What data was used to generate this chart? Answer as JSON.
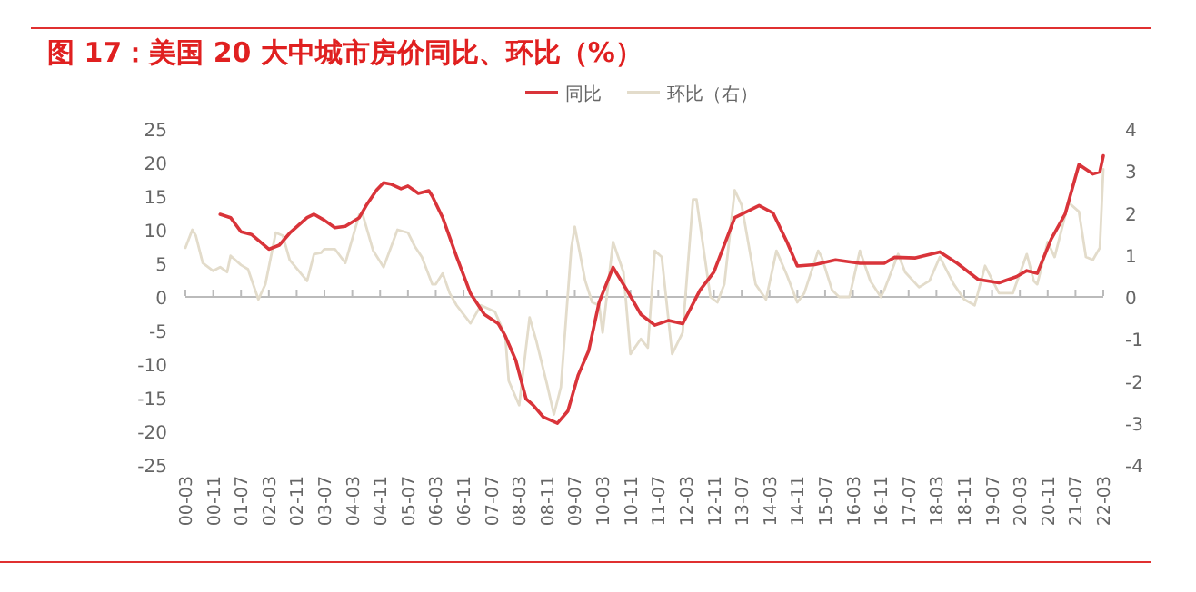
{
  "chart_data": {
    "type": "line",
    "title": "图 17：美国 20 大中城市房价同比、环比（%）",
    "legend": "top",
    "xlim": [
      "2000-03",
      "2022-03"
    ],
    "xticks": [
      {
        "value": "2000-03",
        "label": "00-03"
      },
      {
        "value": "2000-11",
        "label": "00-11"
      },
      {
        "value": "2001-07",
        "label": "01-07"
      },
      {
        "value": "2002-03",
        "label": "02-03"
      },
      {
        "value": "2002-11",
        "label": "02-11"
      },
      {
        "value": "2003-07",
        "label": "03-07"
      },
      {
        "value": "2004-03",
        "label": "04-03"
      },
      {
        "value": "2004-11",
        "label": "04-11"
      },
      {
        "value": "2005-07",
        "label": "05-07"
      },
      {
        "value": "2006-03",
        "label": "06-03"
      },
      {
        "value": "2006-11",
        "label": "06-11"
      },
      {
        "value": "2007-07",
        "label": "07-07"
      },
      {
        "value": "2008-03",
        "label": "08-03"
      },
      {
        "value": "2008-11",
        "label": "08-11"
      },
      {
        "value": "2009-07",
        "label": "09-07"
      },
      {
        "value": "2010-03",
        "label": "10-03"
      },
      {
        "value": "2010-11",
        "label": "10-11"
      },
      {
        "value": "2011-07",
        "label": "11-07"
      },
      {
        "value": "2012-03",
        "label": "12-03"
      },
      {
        "value": "2012-11",
        "label": "12-11"
      },
      {
        "value": "2013-07",
        "label": "13-07"
      },
      {
        "value": "2014-03",
        "label": "14-03"
      },
      {
        "value": "2014-11",
        "label": "14-11"
      },
      {
        "value": "2015-07",
        "label": "15-07"
      },
      {
        "value": "2016-03",
        "label": "16-03"
      },
      {
        "value": "2016-11",
        "label": "16-11"
      },
      {
        "value": "2017-07",
        "label": "17-07"
      },
      {
        "value": "2018-03",
        "label": "18-03"
      },
      {
        "value": "2018-11",
        "label": "18-11"
      },
      {
        "value": "2019-07",
        "label": "19-07"
      },
      {
        "value": "2020-03",
        "label": "20-03"
      },
      {
        "value": "2020-11",
        "label": "20-11"
      },
      {
        "value": "2021-07",
        "label": "21-07"
      },
      {
        "value": "2022-03",
        "label": "22-03"
      }
    ],
    "ylim": [
      -25,
      25
    ],
    "yticks": [
      -25,
      -20,
      -15,
      -10,
      -5,
      0,
      5,
      10,
      15,
      20,
      25
    ],
    "y2lim": [
      -4,
      4
    ],
    "y2ticks": [
      -4,
      -3,
      -2,
      -1,
      0,
      1,
      2,
      3,
      4
    ],
    "series": [
      {
        "name": "同比",
        "color": "#d9343a",
        "x": [
          "2001-01",
          "2001-04",
          "2001-07",
          "2001-10",
          "2002-03",
          "2002-06",
          "2002-09",
          "2003-02",
          "2003-04",
          "2003-07",
          "2003-10",
          "2004-01",
          "2004-05",
          "2004-07",
          "2004-10",
          "2004-12",
          "2005-02",
          "2005-05",
          "2005-07",
          "2005-10",
          "2006-01",
          "2006-02",
          "2006-05",
          "2006-09",
          "2007-01",
          "2007-05",
          "2007-09",
          "2007-11",
          "2008-02",
          "2008-05",
          "2008-07",
          "2008-10",
          "2009-02",
          "2009-05",
          "2009-08",
          "2009-11",
          "2010-02",
          "2010-06",
          "2010-10",
          "2011-02",
          "2011-06",
          "2011-10",
          "2012-02",
          "2012-07",
          "2012-11",
          "2013-05",
          "2013-07",
          "2013-12",
          "2014-04",
          "2014-08",
          "2014-11",
          "2015-04",
          "2015-10",
          "2016-05",
          "2016-12",
          "2017-03",
          "2017-09",
          "2018-04",
          "2018-09",
          "2019-03",
          "2019-09",
          "2020-02",
          "2020-05",
          "2020-08",
          "2020-12",
          "2021-04",
          "2021-08",
          "2021-12",
          "2022-02",
          "2022-03"
        ],
        "values": [
          12.3,
          11.8,
          9.7,
          9.3,
          7.1,
          7.7,
          9.5,
          11.8,
          12.3,
          11.4,
          10.3,
          10.5,
          11.8,
          13.6,
          15.9,
          17.0,
          16.8,
          16.1,
          16.5,
          15.4,
          15.8,
          15.0,
          11.8,
          6.0,
          0.5,
          -2.6,
          -4.0,
          -5.8,
          -9.4,
          -15.2,
          -16.1,
          -17.9,
          -18.8,
          -17.0,
          -11.6,
          -8.0,
          -0.8,
          4.4,
          1.0,
          -2.6,
          -4.2,
          -3.5,
          -4.0,
          1.0,
          3.7,
          11.8,
          12.3,
          13.6,
          12.5,
          8.2,
          4.6,
          4.8,
          5.5,
          5.0,
          5.0,
          5.9,
          5.8,
          6.7,
          5.0,
          2.6,
          2.1,
          3.0,
          3.9,
          3.5,
          8.6,
          12.3,
          19.7,
          18.3,
          18.6,
          21.0
        ]
      },
      {
        "name": "环比（右）",
        "color": "#e3dccb",
        "axis": "y2",
        "x": [
          "2000-03",
          "2000-05",
          "2000-06",
          "2000-08",
          "2000-11",
          "2001-01",
          "2001-03",
          "2001-04",
          "2001-07",
          "2001-09",
          "2001-12",
          "2002-02",
          "2002-05",
          "2002-07",
          "2002-09",
          "2003-02",
          "2003-04",
          "2003-06",
          "2003-07",
          "2003-10",
          "2004-01",
          "2004-05",
          "2004-06",
          "2004-09",
          "2004-12",
          "2005-04",
          "2005-07",
          "2005-09",
          "2005-11",
          "2006-02",
          "2006-03",
          "2006-05",
          "2006-07",
          "2006-09",
          "2007-01",
          "2007-04",
          "2007-08",
          "2007-11",
          "2007-12",
          "2008-03",
          "2008-06",
          "2008-08",
          "2008-11",
          "2009-01",
          "2009-03",
          "2009-06",
          "2009-07",
          "2009-10",
          "2009-12",
          "2010-02",
          "2010-03",
          "2010-06",
          "2010-09",
          "2010-11",
          "2011-02",
          "2011-04",
          "2011-06",
          "2011-08",
          "2011-11",
          "2012-02",
          "2012-05",
          "2012-06",
          "2012-10",
          "2012-12",
          "2013-02",
          "2013-05",
          "2013-07",
          "2013-11",
          "2014-02",
          "2014-05",
          "2014-08",
          "2014-11",
          "2015-01",
          "2015-05",
          "2015-06",
          "2015-09",
          "2015-11",
          "2016-02",
          "2016-05",
          "2016-08",
          "2016-11",
          "2016-12",
          "2017-04",
          "2017-06",
          "2017-10",
          "2018-01",
          "2018-04",
          "2018-08",
          "2018-11",
          "2019-02",
          "2019-05",
          "2019-09",
          "2020-01",
          "2020-05",
          "2020-07",
          "2020-08",
          "2020-11",
          "2021-01",
          "2021-05",
          "2021-08",
          "2021-10",
          "2021-12",
          "2022-02",
          "2022-03"
        ],
        "values": [
          1.17,
          1.6,
          1.46,
          0.81,
          0.62,
          0.71,
          0.59,
          0.98,
          0.76,
          0.66,
          -0.06,
          0.3,
          1.53,
          1.46,
          0.88,
          0.38,
          1.02,
          1.05,
          1.14,
          1.14,
          0.81,
          1.96,
          1.96,
          1.1,
          0.71,
          1.6,
          1.53,
          1.2,
          0.95,
          0.3,
          0.3,
          0.56,
          0.09,
          -0.2,
          -0.63,
          -0.2,
          -0.35,
          -0.92,
          -2.0,
          -2.58,
          -0.49,
          -1.07,
          -2.08,
          -2.8,
          -2.15,
          1.17,
          1.67,
          0.38,
          -0.13,
          -0.2,
          -0.85,
          1.31,
          0.59,
          -1.36,
          -1.0,
          -1.21,
          1.1,
          0.95,
          -1.36,
          -0.85,
          2.32,
          2.32,
          0.0,
          -0.13,
          0.3,
          2.54,
          2.18,
          0.3,
          -0.06,
          1.1,
          0.52,
          -0.13,
          0.09,
          1.1,
          0.95,
          0.16,
          0.0,
          0.0,
          1.1,
          0.38,
          0.0,
          0.16,
          1.02,
          0.59,
          0.23,
          0.38,
          0.95,
          0.3,
          -0.06,
          -0.2,
          0.74,
          0.09,
          0.09,
          1.02,
          0.38,
          0.3,
          1.31,
          0.95,
          2.25,
          2.03,
          0.95,
          0.88,
          1.17,
          3.04
        ]
      }
    ]
  }
}
